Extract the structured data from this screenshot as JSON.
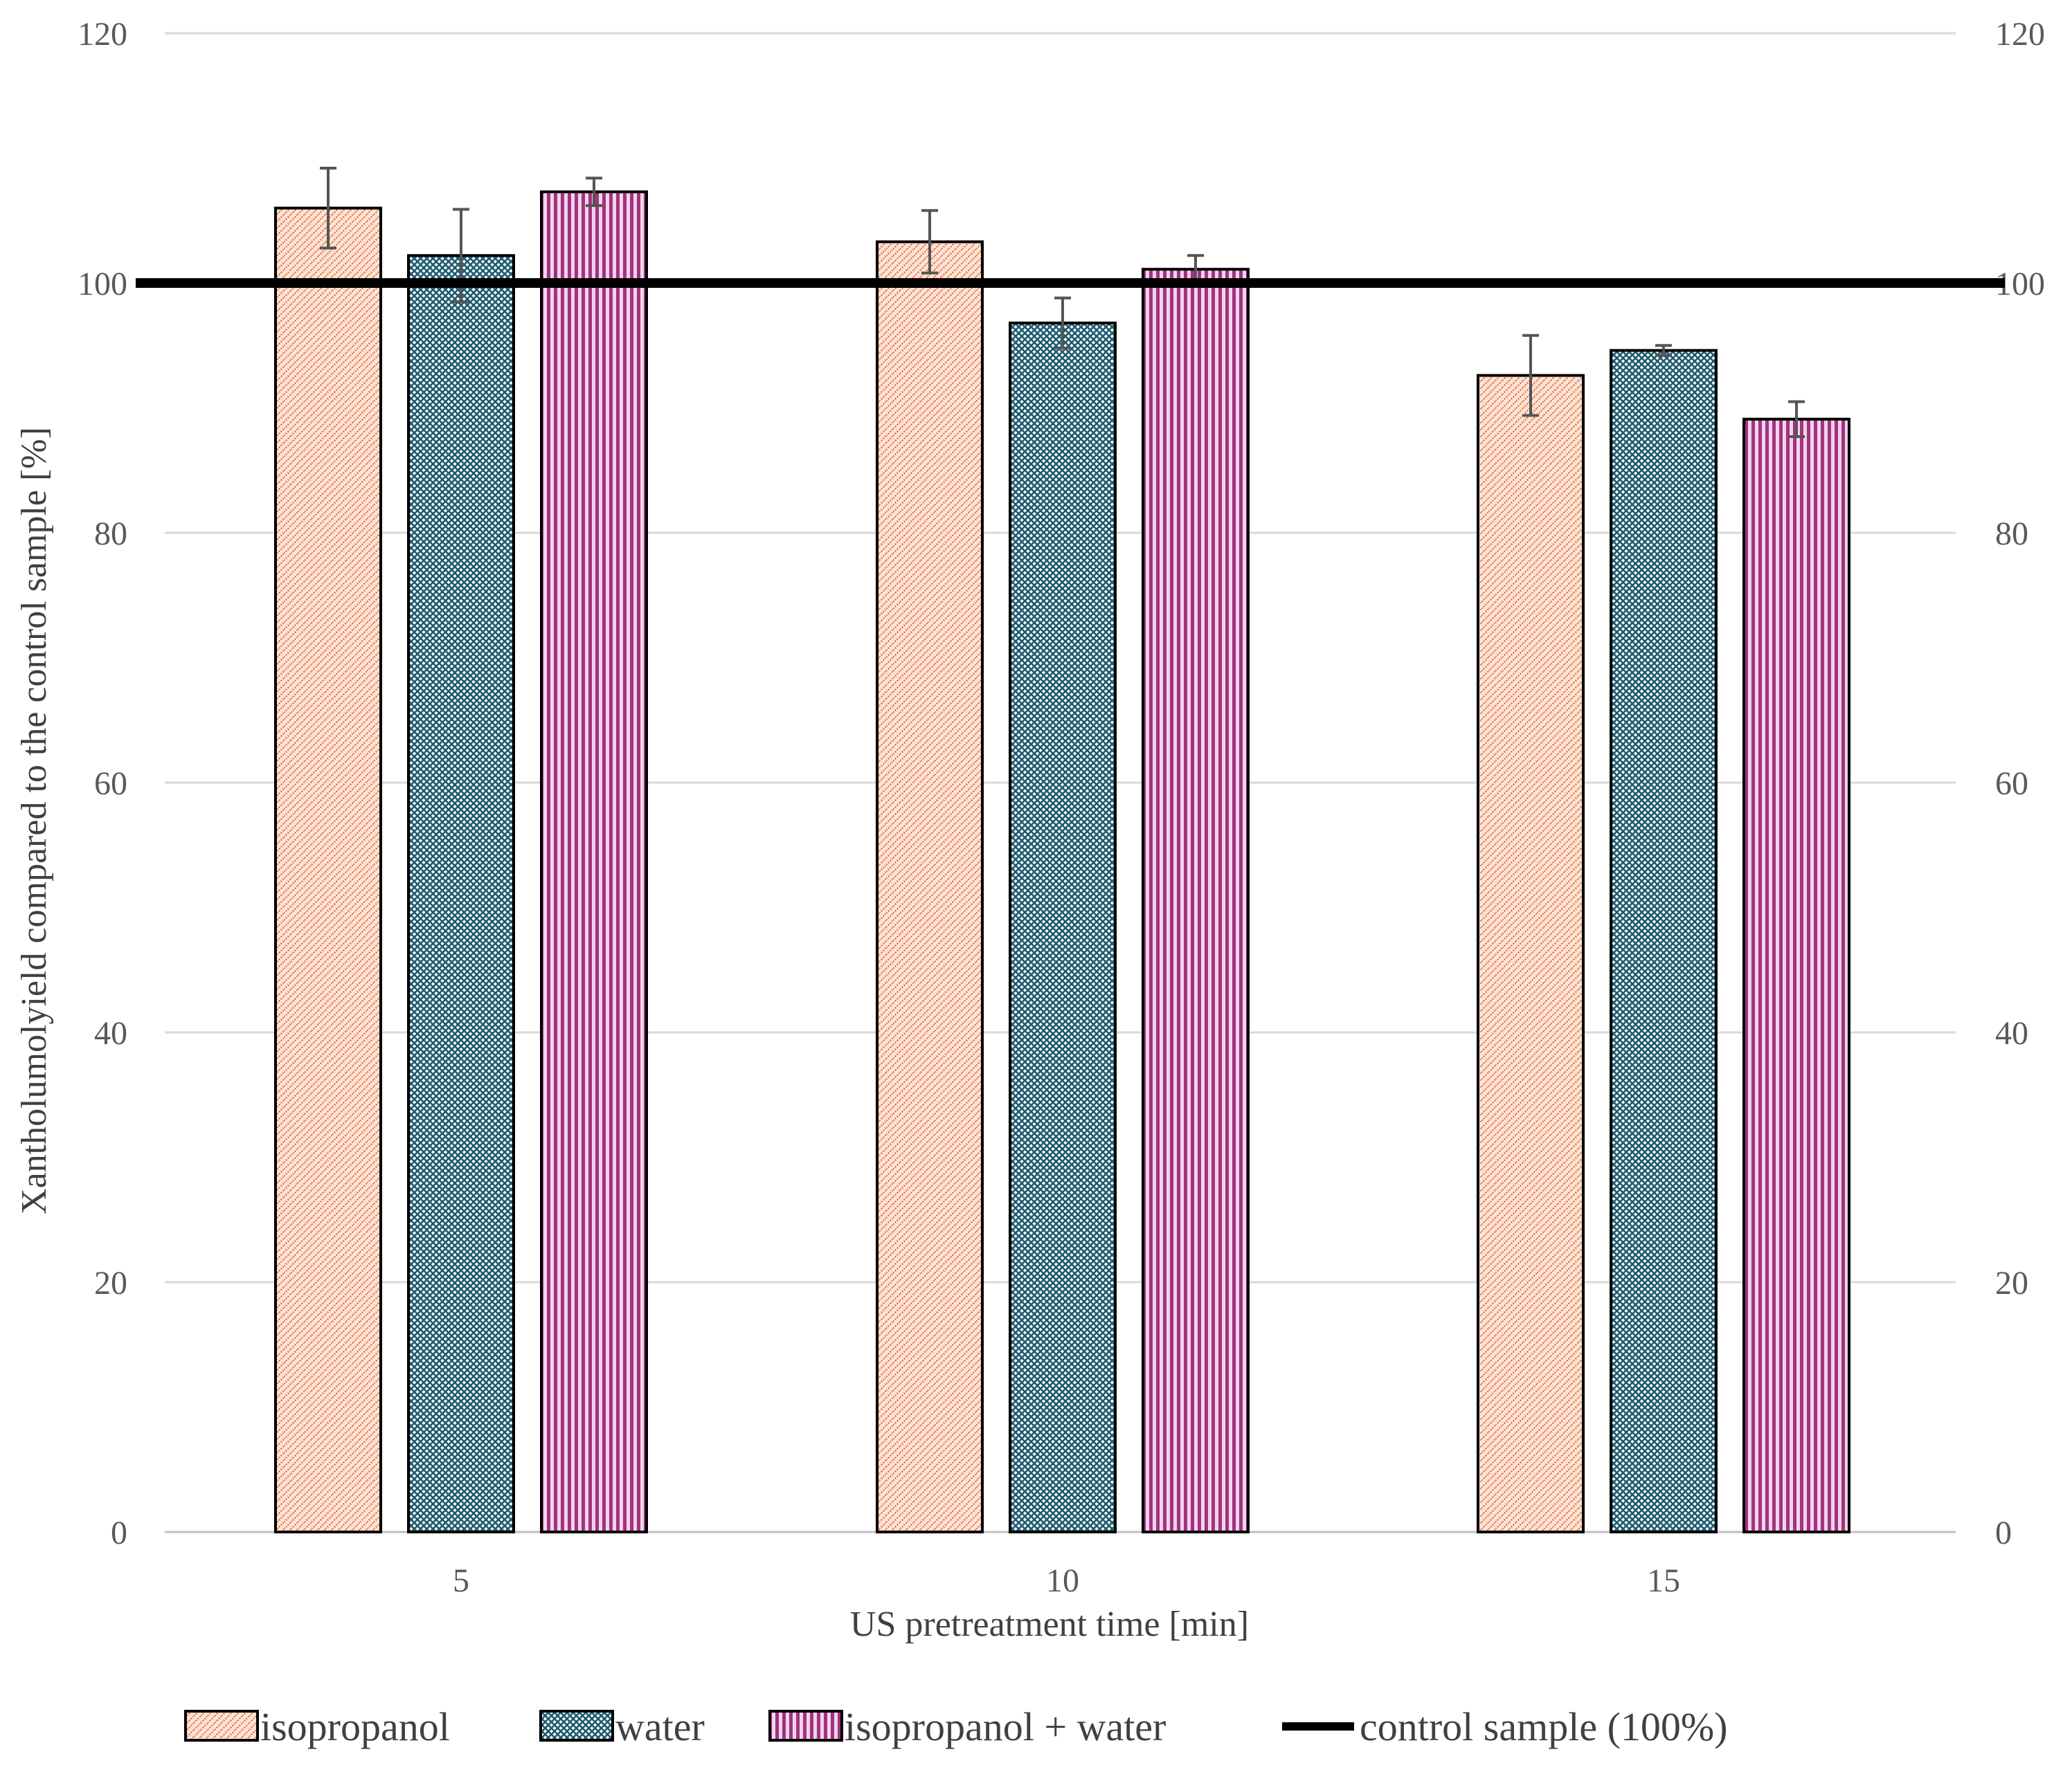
{
  "chart_data": {
    "type": "bar",
    "title": "",
    "xlabel": "US pretreatment time [min]",
    "ylabel": "Xantholumolyield compared to the control sample [%]",
    "ylim": [
      0,
      120
    ],
    "yticks": [
      "0",
      "20",
      "40",
      "60",
      "80",
      "100",
      "120"
    ],
    "ytick_values": [
      0,
      20,
      40,
      60,
      80,
      100,
      120
    ],
    "grid": true,
    "secondary_y_axis": true,
    "categories": [
      "5",
      "10",
      "15"
    ],
    "series": [
      {
        "name": "isopropanol",
        "values": [
          106.0,
          103.3,
          92.6
        ],
        "errors": [
          3.2,
          2.5,
          3.2
        ],
        "color": "#e8622c",
        "pattern": "diagonal-dots"
      },
      {
        "name": "water",
        "values": [
          102.2,
          96.8,
          94.6
        ],
        "errors": [
          3.7,
          2.0,
          0.4
        ],
        "color": "#1c5a6e",
        "pattern": "cross-hatch"
      },
      {
        "name": "isopropanol + water",
        "values": [
          107.3,
          101.1,
          89.1
        ],
        "errors": [
          1.1,
          1.1,
          1.4
        ],
        "color": "#a0337f",
        "pattern": "vertical-stripes"
      }
    ],
    "reference_line": {
      "name": "control sample (100%)",
      "value": 100,
      "color": "#000000"
    },
    "legend_position": "bottom"
  }
}
